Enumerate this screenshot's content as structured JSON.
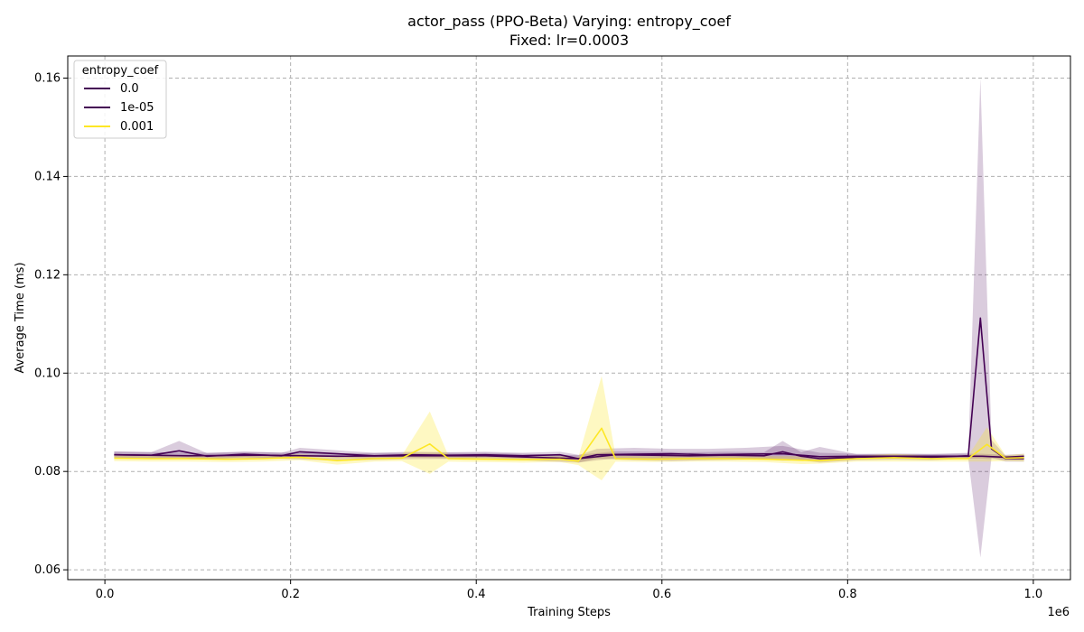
{
  "chart_data": {
    "type": "line",
    "title": "actor_pass (PPO-Beta) Varying: entropy_coef",
    "subtitle": "Fixed: lr=0.0003",
    "xlabel": "Training Steps",
    "ylabel": "Average Time (ms)",
    "x_offset_label": "1e6",
    "xlim": [
      -0.04,
      1.04
    ],
    "ylim": [
      0.058,
      0.1645
    ],
    "x_ticks": [
      0.0,
      0.2,
      0.4,
      0.6,
      0.8,
      1.0
    ],
    "x_tick_labels": [
      "0.0",
      "0.2",
      "0.4",
      "0.6",
      "0.8",
      "1.0"
    ],
    "y_ticks": [
      0.06,
      0.08,
      0.1,
      0.12,
      0.14,
      0.16
    ],
    "y_tick_labels": [
      "0.06",
      "0.08",
      "0.10",
      "0.12",
      "0.14",
      "0.16"
    ],
    "grid": true,
    "legend": {
      "title": "entropy_coef",
      "placement": "top-left"
    },
    "series": [
      {
        "name": "0.0",
        "color": "#440154",
        "x": [
          0.01,
          0.09,
          0.17,
          0.25,
          0.33,
          0.41,
          0.51,
          0.53,
          0.57,
          0.61,
          0.65,
          0.69,
          0.73,
          0.77,
          0.81,
          0.85,
          0.89,
          0.93,
          0.945,
          0.97,
          0.99
        ],
        "y": [
          0.0834,
          0.0832,
          0.0833,
          0.0831,
          0.0832,
          0.0832,
          0.0826,
          0.0834,
          0.0835,
          0.0836,
          0.0834,
          0.0835,
          0.0836,
          0.083,
          0.0831,
          0.0831,
          0.0831,
          0.0831,
          0.0831,
          0.0829,
          0.0831
        ],
        "band_low": [
          0.0828,
          0.0826,
          0.0827,
          0.0822,
          0.0825,
          0.0826,
          0.0818,
          0.0826,
          0.0823,
          0.0821,
          0.0823,
          0.0824,
          0.0826,
          0.0822,
          0.0826,
          0.0826,
          0.0826,
          0.0826,
          0.0826,
          0.0824,
          0.0826
        ],
        "band_high": [
          0.0841,
          0.0838,
          0.0839,
          0.0837,
          0.0838,
          0.0838,
          0.0833,
          0.0846,
          0.0848,
          0.0846,
          0.0846,
          0.0848,
          0.0852,
          0.0838,
          0.0836,
          0.0836,
          0.0836,
          0.0836,
          0.0836,
          0.0834,
          0.0836
        ]
      },
      {
        "name": "1e-05",
        "color": "#440154",
        "x": [
          0.01,
          0.05,
          0.08,
          0.11,
          0.15,
          0.19,
          0.21,
          0.25,
          0.29,
          0.33,
          0.37,
          0.41,
          0.45,
          0.49,
          0.51,
          0.55,
          0.59,
          0.63,
          0.67,
          0.71,
          0.73,
          0.75,
          0.77,
          0.81,
          0.85,
          0.89,
          0.93,
          0.943,
          0.955,
          0.97,
          0.99
        ],
        "y": [
          0.0834,
          0.0833,
          0.0842,
          0.0831,
          0.0835,
          0.0832,
          0.084,
          0.0836,
          0.0832,
          0.0834,
          0.0833,
          0.0834,
          0.0832,
          0.0834,
          0.0826,
          0.0834,
          0.0833,
          0.0832,
          0.0833,
          0.0832,
          0.084,
          0.0831,
          0.0826,
          0.0829,
          0.083,
          0.0829,
          0.0832,
          0.1112,
          0.0846,
          0.0826,
          0.0826
        ],
        "band_low": [
          0.0828,
          0.0827,
          0.0828,
          0.0825,
          0.0829,
          0.0826,
          0.0832,
          0.0829,
          0.0826,
          0.0828,
          0.0827,
          0.0828,
          0.0826,
          0.0828,
          0.0818,
          0.0827,
          0.0826,
          0.0825,
          0.0826,
          0.0825,
          0.0822,
          0.0823,
          0.0818,
          0.0823,
          0.0824,
          0.0823,
          0.0826,
          0.0625,
          0.0828,
          0.082,
          0.082
        ],
        "band_high": [
          0.084,
          0.0839,
          0.0862,
          0.0837,
          0.0841,
          0.0838,
          0.0848,
          0.0843,
          0.0838,
          0.084,
          0.0839,
          0.084,
          0.0838,
          0.084,
          0.0834,
          0.0841,
          0.084,
          0.0839,
          0.084,
          0.0839,
          0.0862,
          0.0839,
          0.085,
          0.0835,
          0.0836,
          0.0835,
          0.0838,
          0.16,
          0.0864,
          0.0832,
          0.0832
        ]
      },
      {
        "name": "0.001",
        "color": "#fde725",
        "x": [
          0.01,
          0.05,
          0.09,
          0.13,
          0.17,
          0.21,
          0.25,
          0.29,
          0.32,
          0.35,
          0.37,
          0.41,
          0.45,
          0.49,
          0.51,
          0.535,
          0.55,
          0.59,
          0.63,
          0.67,
          0.71,
          0.75,
          0.77,
          0.81,
          0.85,
          0.89,
          0.93,
          0.95,
          0.97,
          0.99
        ],
        "y": [
          0.0827,
          0.0826,
          0.0826,
          0.0825,
          0.0826,
          0.0829,
          0.0822,
          0.0826,
          0.0827,
          0.0856,
          0.0826,
          0.0825,
          0.0824,
          0.0825,
          0.0821,
          0.0888,
          0.0826,
          0.0825,
          0.0826,
          0.0826,
          0.0825,
          0.0823,
          0.0822,
          0.0826,
          0.0828,
          0.0826,
          0.0826,
          0.0855,
          0.0827,
          0.0828
        ],
        "band_low": [
          0.0821,
          0.082,
          0.082,
          0.0819,
          0.082,
          0.0823,
          0.0814,
          0.082,
          0.0821,
          0.0795,
          0.082,
          0.0819,
          0.0818,
          0.0819,
          0.0813,
          0.0782,
          0.082,
          0.0819,
          0.082,
          0.082,
          0.0819,
          0.0815,
          0.0816,
          0.082,
          0.082,
          0.082,
          0.082,
          0.082,
          0.0821,
          0.082
        ],
        "band_high": [
          0.0833,
          0.0832,
          0.0832,
          0.0831,
          0.0832,
          0.0835,
          0.083,
          0.0832,
          0.0833,
          0.0922,
          0.0832,
          0.0831,
          0.083,
          0.0831,
          0.0829,
          0.0994,
          0.0832,
          0.0831,
          0.0832,
          0.0832,
          0.0831,
          0.0831,
          0.0828,
          0.0832,
          0.0836,
          0.0832,
          0.0832,
          0.089,
          0.0833,
          0.0836
        ]
      }
    ]
  }
}
